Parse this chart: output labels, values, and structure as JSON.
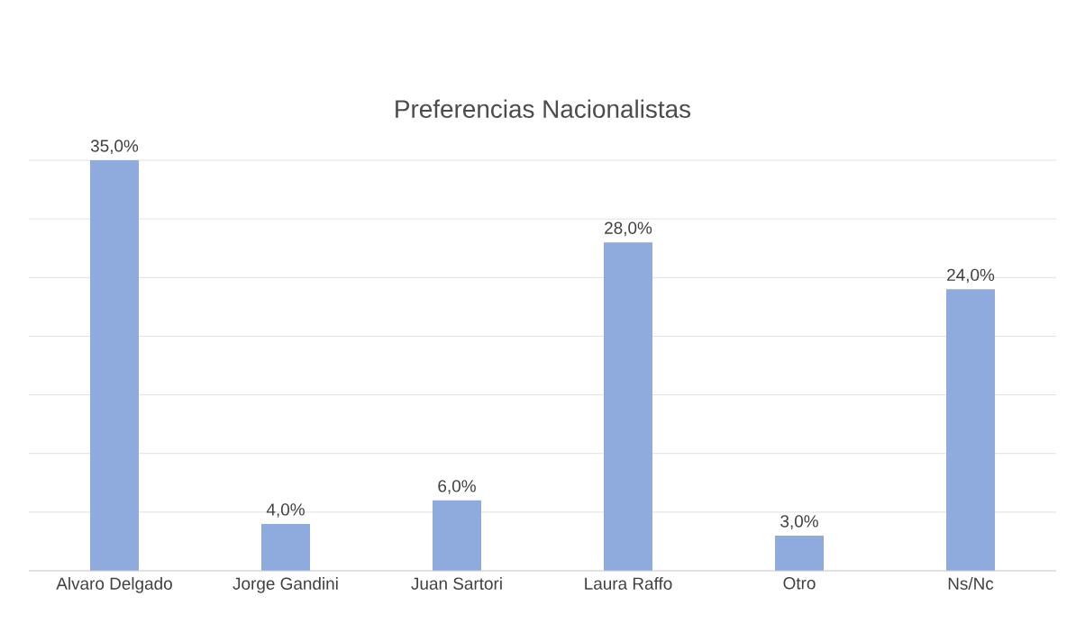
{
  "chart_data": {
    "type": "bar",
    "title": "Preferencias Nacionalistas",
    "categories": [
      "Alvaro Delgado",
      "Jorge Gandini",
      "Juan Sartori",
      "Laura Raffo",
      "Otro",
      "Ns/Nc"
    ],
    "values": [
      35,
      4,
      6,
      28,
      3,
      24
    ],
    "value_labels": [
      "35,0%",
      "4,0%",
      "6,0%",
      "28,0%",
      "3,0%",
      "24,0%"
    ],
    "color": "#8faadc",
    "ylim": [
      0,
      35
    ],
    "yticks": [
      {
        "value": 0,
        "label": null
      },
      {
        "value": 5,
        "label": null
      },
      {
        "value": 10,
        "label": null
      },
      {
        "value": 15,
        "label": null
      },
      {
        "value": 20,
        "label": null
      },
      {
        "value": 25,
        "label": null
      },
      {
        "value": 30,
        "label": null
      },
      {
        "value": 35,
        "label": null
      }
    ],
    "tick_labels": "x",
    "grid": "y"
  }
}
